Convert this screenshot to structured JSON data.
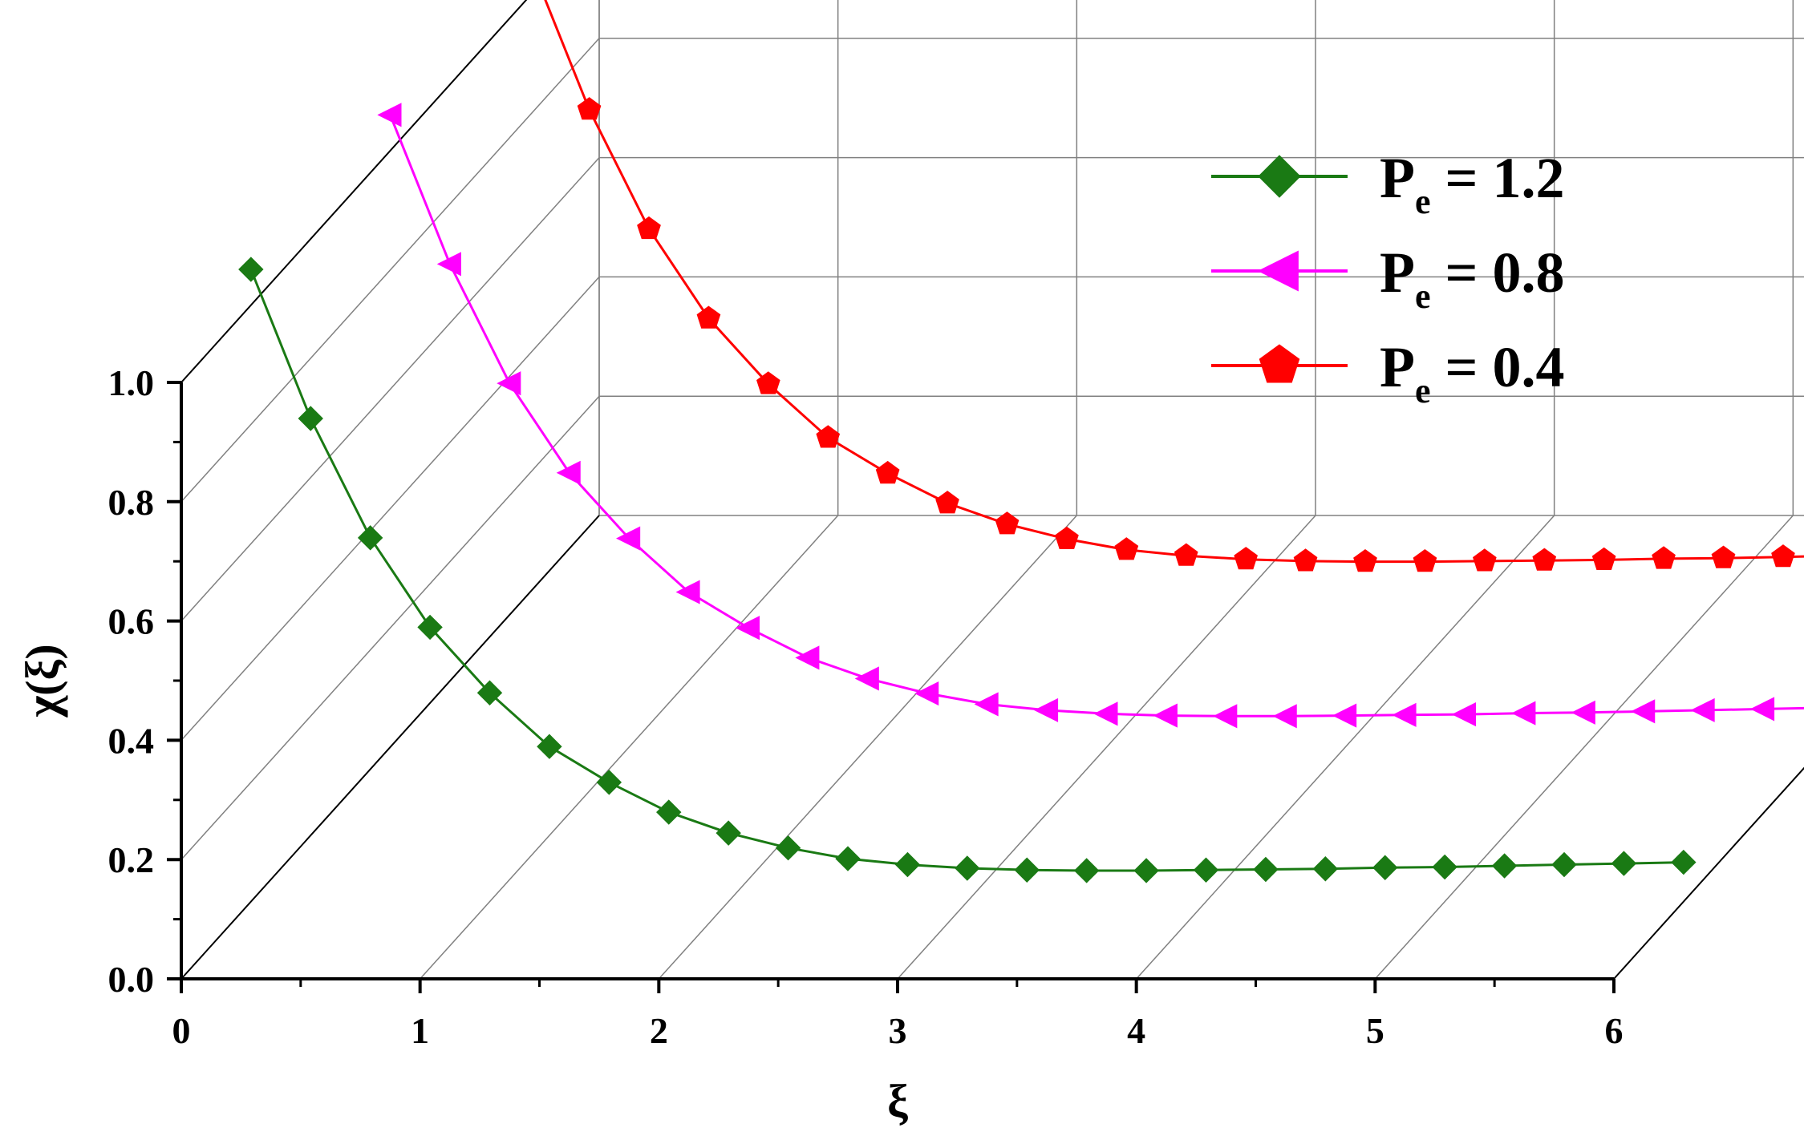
{
  "chart_data": {
    "type": "line",
    "projection": "3d-waterfall",
    "xlabel": "ξ",
    "ylabel": "χ(ξ)",
    "xlim": [
      0,
      6
    ],
    "ylim": [
      0,
      1.0
    ],
    "x_ticks": [
      "0",
      "1",
      "2",
      "3",
      "4",
      "5",
      "6"
    ],
    "y_ticks": [
      "0.0",
      "0.2",
      "0.4",
      "0.6",
      "0.8",
      "1.0"
    ],
    "grid": true,
    "legend_position": "top-right",
    "colors": {
      "green": "#1a7a14",
      "magenta": "#ff00ff",
      "red": "#ff0000"
    },
    "series": [
      {
        "legend_main": "P",
        "legend_sub": "e",
        "legend_value": " = 1.2",
        "color": "#1a7a14",
        "marker": "diamond",
        "depth_index": 0,
        "x": [
          0.0,
          0.25,
          0.5,
          0.75,
          1.0,
          1.25,
          1.5,
          1.75,
          2.0,
          2.25,
          2.5,
          2.75,
          3.0,
          3.25,
          3.5,
          3.75,
          4.0,
          4.25,
          4.5,
          4.75,
          5.0,
          5.25,
          5.5,
          5.75,
          6.0
        ],
        "y": [
          1.06,
          0.81,
          0.61,
          0.46,
          0.35,
          0.26,
          0.2,
          0.15,
          0.115,
          0.09,
          0.072,
          0.062,
          0.056,
          0.053,
          0.052,
          0.052,
          0.053,
          0.054,
          0.055,
          0.057,
          0.058,
          0.06,
          0.062,
          0.064,
          0.066
        ]
      },
      {
        "legend_main": "P",
        "legend_sub": "e",
        "legend_value": " = 0.8",
        "color": "#ff00ff",
        "marker": "triangle-left",
        "depth_index": 1,
        "x": [
          0.0,
          0.25,
          0.5,
          0.75,
          1.0,
          1.25,
          1.5,
          1.75,
          2.0,
          2.25,
          2.5,
          2.75,
          3.0,
          3.25,
          3.5,
          3.75,
          4.0,
          4.25,
          4.5,
          4.75,
          5.0,
          5.25,
          5.5,
          5.75,
          6.0
        ],
        "y": [
          1.06,
          0.81,
          0.61,
          0.46,
          0.35,
          0.26,
          0.2,
          0.15,
          0.115,
          0.09,
          0.072,
          0.062,
          0.056,
          0.053,
          0.052,
          0.052,
          0.053,
          0.054,
          0.055,
          0.057,
          0.058,
          0.06,
          0.062,
          0.064,
          0.066
        ]
      },
      {
        "legend_main": "P",
        "legend_sub": "e",
        "legend_value": " = 0.4",
        "color": "#ff0000",
        "marker": "pentagon",
        "depth_index": 2,
        "x": [
          0.0,
          0.25,
          0.5,
          0.75,
          1.0,
          1.25,
          1.5,
          1.75,
          2.0,
          2.25,
          2.5,
          2.75,
          3.0,
          3.25,
          3.5,
          3.75,
          4.0,
          4.25,
          4.5,
          4.75,
          5.0,
          5.25,
          5.5,
          5.75,
          6.0
        ],
        "y": [
          1.06,
          0.81,
          0.61,
          0.46,
          0.35,
          0.26,
          0.2,
          0.15,
          0.115,
          0.09,
          0.072,
          0.062,
          0.056,
          0.053,
          0.052,
          0.052,
          0.053,
          0.054,
          0.055,
          0.057,
          0.058,
          0.06,
          0.062,
          0.064,
          0.066
        ]
      }
    ]
  }
}
